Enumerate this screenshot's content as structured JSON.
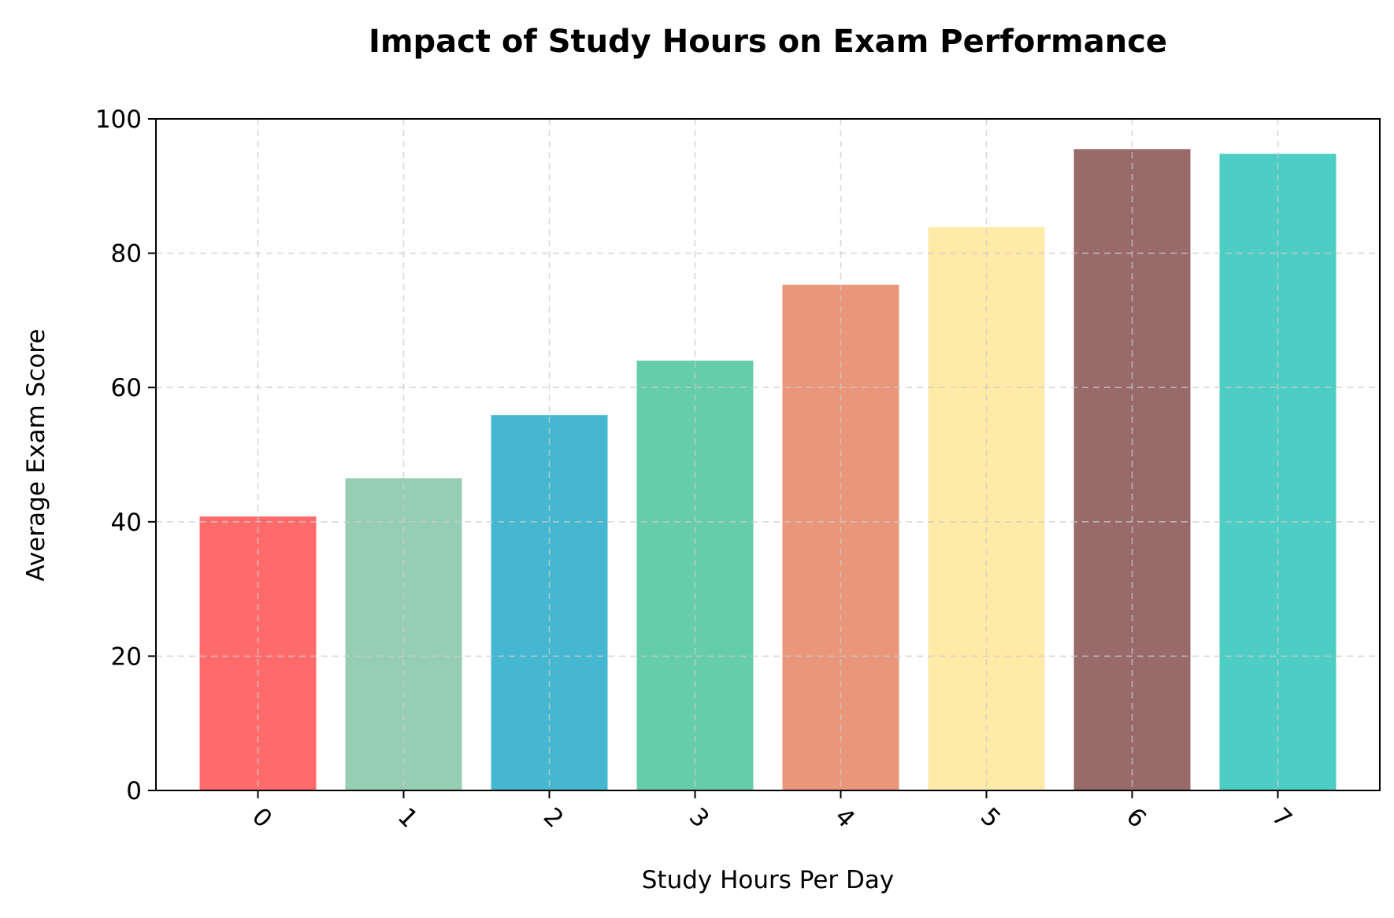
{
  "chart_data": {
    "type": "bar",
    "title": "Impact of Study Hours on Exam Performance",
    "xlabel": "Study Hours Per Day",
    "ylabel": "Average Exam Score",
    "categories": [
      "0",
      "1",
      "2",
      "3",
      "4",
      "5",
      "6",
      "7"
    ],
    "values": [
      40.8,
      46.5,
      55.9,
      64.0,
      75.3,
      83.9,
      95.5,
      94.8
    ],
    "colors": [
      "#FF6B6B",
      "#96CEB4",
      "#45B7D1",
      "#66CDAA",
      "#E9967A",
      "#FFEAA7",
      "#996A6A",
      "#4ECDC4"
    ],
    "bar_alpha": 1.0,
    "ylim": [
      0,
      100
    ],
    "yticks": [
      0,
      20,
      40,
      60,
      80,
      100
    ],
    "grid": true,
    "x_tick_rotation": 45
  }
}
